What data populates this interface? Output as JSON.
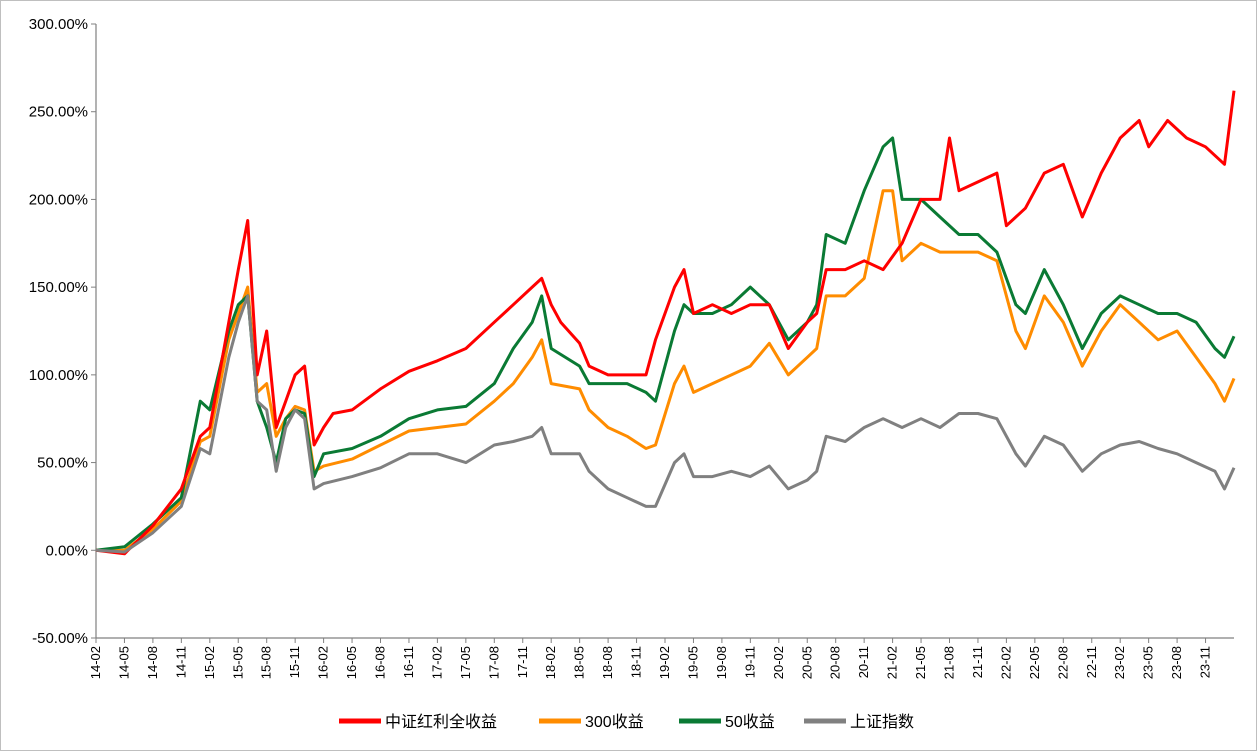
{
  "chart_data": {
    "type": "line",
    "title": "",
    "xlabel": "",
    "ylabel": "",
    "ylim": [
      -50,
      300
    ],
    "yticks": [
      "300.00%",
      "250.00%",
      "200.00%",
      "150.00%",
      "100.00%",
      "50.00%",
      "0.00%",
      "-50.00%"
    ],
    "x_tick_labels": [
      "14-02",
      "14-05",
      "14-08",
      "14-11",
      "15-02",
      "15-05",
      "15-08",
      "15-11",
      "16-02",
      "16-05",
      "16-08",
      "16-11",
      "17-02",
      "17-05",
      "17-08",
      "17-11",
      "18-02",
      "18-05",
      "18-08",
      "18-11",
      "19-02",
      "19-05",
      "19-08",
      "19-11",
      "20-02",
      "20-05",
      "20-08",
      "20-11",
      "21-02",
      "21-05",
      "21-08",
      "21-11",
      "22-02",
      "22-05",
      "22-08",
      "22-11",
      "23-02",
      "23-05",
      "23-08",
      "23-11"
    ],
    "x_range": [
      "14-02",
      "24-02"
    ],
    "legend_position": "bottom",
    "grid": false,
    "series": [
      {
        "name": "中证红利全收益",
        "color": "#ff0000",
        "points": [
          [
            "14-02",
            0
          ],
          [
            "14-05",
            -2
          ],
          [
            "14-08",
            14
          ],
          [
            "14-11",
            35
          ],
          [
            "15-01",
            65
          ],
          [
            "15-02",
            70
          ],
          [
            "15-04",
            130
          ],
          [
            "15-05",
            160
          ],
          [
            "15-06",
            188
          ],
          [
            "15-07",
            100
          ],
          [
            "15-08",
            125
          ],
          [
            "15-09",
            70
          ],
          [
            "15-10",
            85
          ],
          [
            "15-11",
            100
          ],
          [
            "15-12",
            105
          ],
          [
            "16-01",
            60
          ],
          [
            "16-02",
            70
          ],
          [
            "16-03",
            78
          ],
          [
            "16-05",
            80
          ],
          [
            "16-08",
            92
          ],
          [
            "16-11",
            102
          ],
          [
            "17-02",
            108
          ],
          [
            "17-05",
            115
          ],
          [
            "17-08",
            130
          ],
          [
            "17-10",
            140
          ],
          [
            "17-12",
            150
          ],
          [
            "18-01",
            155
          ],
          [
            "18-02",
            140
          ],
          [
            "18-03",
            130
          ],
          [
            "18-05",
            118
          ],
          [
            "18-06",
            105
          ],
          [
            "18-08",
            100
          ],
          [
            "18-10",
            100
          ],
          [
            "18-12",
            100
          ],
          [
            "19-01",
            120
          ],
          [
            "19-03",
            150
          ],
          [
            "19-04",
            160
          ],
          [
            "19-05",
            135
          ],
          [
            "19-07",
            140
          ],
          [
            "19-09",
            135
          ],
          [
            "19-11",
            140
          ],
          [
            "20-01",
            140
          ],
          [
            "20-03",
            115
          ],
          [
            "20-05",
            130
          ],
          [
            "20-06",
            135
          ],
          [
            "20-07",
            160
          ],
          [
            "20-09",
            160
          ],
          [
            "20-11",
            165
          ],
          [
            "21-01",
            160
          ],
          [
            "21-03",
            175
          ],
          [
            "21-05",
            200
          ],
          [
            "21-07",
            200
          ],
          [
            "21-08",
            235
          ],
          [
            "21-09",
            205
          ],
          [
            "21-11",
            210
          ],
          [
            "22-01",
            215
          ],
          [
            "22-02",
            185
          ],
          [
            "22-04",
            195
          ],
          [
            "22-06",
            215
          ],
          [
            "22-08",
            220
          ],
          [
            "22-10",
            190
          ],
          [
            "22-12",
            215
          ],
          [
            "23-02",
            235
          ],
          [
            "23-04",
            245
          ],
          [
            "23-05",
            230
          ],
          [
            "23-07",
            245
          ],
          [
            "23-09",
            235
          ],
          [
            "23-11",
            230
          ],
          [
            "24-01",
            220
          ],
          [
            "24-02",
            262
          ]
        ]
      },
      {
        "name": "300收益",
        "color": "#ff8c00",
        "points": [
          [
            "14-02",
            0
          ],
          [
            "14-05",
            0
          ],
          [
            "14-08",
            12
          ],
          [
            "14-11",
            28
          ],
          [
            "15-01",
            62
          ],
          [
            "15-02",
            65
          ],
          [
            "15-04",
            120
          ],
          [
            "15-05",
            135
          ],
          [
            "15-06",
            150
          ],
          [
            "15-07",
            90
          ],
          [
            "15-08",
            95
          ],
          [
            "15-09",
            65
          ],
          [
            "15-10",
            75
          ],
          [
            "15-11",
            82
          ],
          [
            "15-12",
            80
          ],
          [
            "16-01",
            45
          ],
          [
            "16-02",
            48
          ],
          [
            "16-05",
            52
          ],
          [
            "16-08",
            60
          ],
          [
            "16-11",
            68
          ],
          [
            "17-02",
            70
          ],
          [
            "17-05",
            72
          ],
          [
            "17-08",
            85
          ],
          [
            "17-10",
            95
          ],
          [
            "17-12",
            110
          ],
          [
            "18-01",
            120
          ],
          [
            "18-02",
            95
          ],
          [
            "18-05",
            92
          ],
          [
            "18-06",
            80
          ],
          [
            "18-08",
            70
          ],
          [
            "18-10",
            65
          ],
          [
            "18-12",
            58
          ],
          [
            "19-01",
            60
          ],
          [
            "19-03",
            95
          ],
          [
            "19-04",
            105
          ],
          [
            "19-05",
            90
          ],
          [
            "19-07",
            95
          ],
          [
            "19-09",
            100
          ],
          [
            "19-11",
            105
          ],
          [
            "20-01",
            118
          ],
          [
            "20-03",
            100
          ],
          [
            "20-05",
            110
          ],
          [
            "20-06",
            115
          ],
          [
            "20-07",
            145
          ],
          [
            "20-09",
            145
          ],
          [
            "20-11",
            155
          ],
          [
            "21-01",
            205
          ],
          [
            "21-02",
            205
          ],
          [
            "21-03",
            165
          ],
          [
            "21-05",
            175
          ],
          [
            "21-07",
            170
          ],
          [
            "21-09",
            170
          ],
          [
            "21-11",
            170
          ],
          [
            "22-01",
            165
          ],
          [
            "22-03",
            125
          ],
          [
            "22-04",
            115
          ],
          [
            "22-06",
            145
          ],
          [
            "22-08",
            130
          ],
          [
            "22-10",
            105
          ],
          [
            "22-12",
            125
          ],
          [
            "23-02",
            140
          ],
          [
            "23-04",
            130
          ],
          [
            "23-06",
            120
          ],
          [
            "23-08",
            125
          ],
          [
            "23-10",
            110
          ],
          [
            "23-12",
            95
          ],
          [
            "24-01",
            85
          ],
          [
            "24-02",
            98
          ]
        ]
      },
      {
        "name": "50收益",
        "color": "#0a7a34",
        "points": [
          [
            "14-02",
            0
          ],
          [
            "14-05",
            2
          ],
          [
            "14-08",
            15
          ],
          [
            "14-11",
            30
          ],
          [
            "15-01",
            85
          ],
          [
            "15-02",
            80
          ],
          [
            "15-04",
            125
          ],
          [
            "15-05",
            140
          ],
          [
            "15-06",
            145
          ],
          [
            "15-07",
            85
          ],
          [
            "15-08",
            70
          ],
          [
            "15-09",
            50
          ],
          [
            "15-10",
            75
          ],
          [
            "15-11",
            80
          ],
          [
            "15-12",
            78
          ],
          [
            "16-01",
            42
          ],
          [
            "16-02",
            55
          ],
          [
            "16-05",
            58
          ],
          [
            "16-08",
            65
          ],
          [
            "16-11",
            75
          ],
          [
            "17-02",
            80
          ],
          [
            "17-05",
            82
          ],
          [
            "17-08",
            95
          ],
          [
            "17-10",
            115
          ],
          [
            "17-12",
            130
          ],
          [
            "18-01",
            145
          ],
          [
            "18-02",
            115
          ],
          [
            "18-05",
            105
          ],
          [
            "18-06",
            95
          ],
          [
            "18-08",
            95
          ],
          [
            "18-10",
            95
          ],
          [
            "18-12",
            90
          ],
          [
            "19-01",
            85
          ],
          [
            "19-03",
            125
          ],
          [
            "19-04",
            140
          ],
          [
            "19-05",
            135
          ],
          [
            "19-07",
            135
          ],
          [
            "19-09",
            140
          ],
          [
            "19-11",
            150
          ],
          [
            "20-01",
            140
          ],
          [
            "20-03",
            120
          ],
          [
            "20-05",
            130
          ],
          [
            "20-06",
            140
          ],
          [
            "20-07",
            180
          ],
          [
            "20-09",
            175
          ],
          [
            "20-11",
            205
          ],
          [
            "21-01",
            230
          ],
          [
            "21-02",
            235
          ],
          [
            "21-03",
            200
          ],
          [
            "21-05",
            200
          ],
          [
            "21-07",
            190
          ],
          [
            "21-09",
            180
          ],
          [
            "21-11",
            180
          ],
          [
            "22-01",
            170
          ],
          [
            "22-03",
            140
          ],
          [
            "22-04",
            135
          ],
          [
            "22-06",
            160
          ],
          [
            "22-08",
            140
          ],
          [
            "22-10",
            115
          ],
          [
            "22-12",
            135
          ],
          [
            "23-02",
            145
          ],
          [
            "23-04",
            140
          ],
          [
            "23-06",
            135
          ],
          [
            "23-08",
            135
          ],
          [
            "23-10",
            130
          ],
          [
            "23-12",
            115
          ],
          [
            "24-01",
            110
          ],
          [
            "24-02",
            122
          ]
        ]
      },
      {
        "name": "上证指数",
        "color": "#808080",
        "points": [
          [
            "14-02",
            0
          ],
          [
            "14-05",
            -1
          ],
          [
            "14-08",
            10
          ],
          [
            "14-11",
            25
          ],
          [
            "15-01",
            58
          ],
          [
            "15-02",
            55
          ],
          [
            "15-04",
            110
          ],
          [
            "15-05",
            130
          ],
          [
            "15-06",
            145
          ],
          [
            "15-07",
            85
          ],
          [
            "15-08",
            80
          ],
          [
            "15-09",
            45
          ],
          [
            "15-10",
            70
          ],
          [
            "15-11",
            80
          ],
          [
            "15-12",
            75
          ],
          [
            "16-01",
            35
          ],
          [
            "16-02",
            38
          ],
          [
            "16-05",
            42
          ],
          [
            "16-08",
            47
          ],
          [
            "16-11",
            55
          ],
          [
            "17-02",
            55
          ],
          [
            "17-05",
            50
          ],
          [
            "17-08",
            60
          ],
          [
            "17-10",
            62
          ],
          [
            "17-12",
            65
          ],
          [
            "18-01",
            70
          ],
          [
            "18-02",
            55
          ],
          [
            "18-05",
            55
          ],
          [
            "18-06",
            45
          ],
          [
            "18-08",
            35
          ],
          [
            "18-10",
            30
          ],
          [
            "18-12",
            25
          ],
          [
            "19-01",
            25
          ],
          [
            "19-03",
            50
          ],
          [
            "19-04",
            55
          ],
          [
            "19-05",
            42
          ],
          [
            "19-07",
            42
          ],
          [
            "19-09",
            45
          ],
          [
            "19-11",
            42
          ],
          [
            "20-01",
            48
          ],
          [
            "20-03",
            35
          ],
          [
            "20-05",
            40
          ],
          [
            "20-06",
            45
          ],
          [
            "20-07",
            65
          ],
          [
            "20-09",
            62
          ],
          [
            "20-11",
            70
          ],
          [
            "21-01",
            75
          ],
          [
            "21-03",
            70
          ],
          [
            "21-05",
            75
          ],
          [
            "21-07",
            70
          ],
          [
            "21-09",
            78
          ],
          [
            "21-11",
            78
          ],
          [
            "22-01",
            75
          ],
          [
            "22-03",
            55
          ],
          [
            "22-04",
            48
          ],
          [
            "22-06",
            65
          ],
          [
            "22-08",
            60
          ],
          [
            "22-10",
            45
          ],
          [
            "22-12",
            55
          ],
          [
            "23-02",
            60
          ],
          [
            "23-04",
            62
          ],
          [
            "23-06",
            58
          ],
          [
            "23-08",
            55
          ],
          [
            "23-10",
            50
          ],
          [
            "23-12",
            45
          ],
          [
            "24-01",
            35
          ],
          [
            "24-02",
            47
          ]
        ]
      }
    ]
  }
}
